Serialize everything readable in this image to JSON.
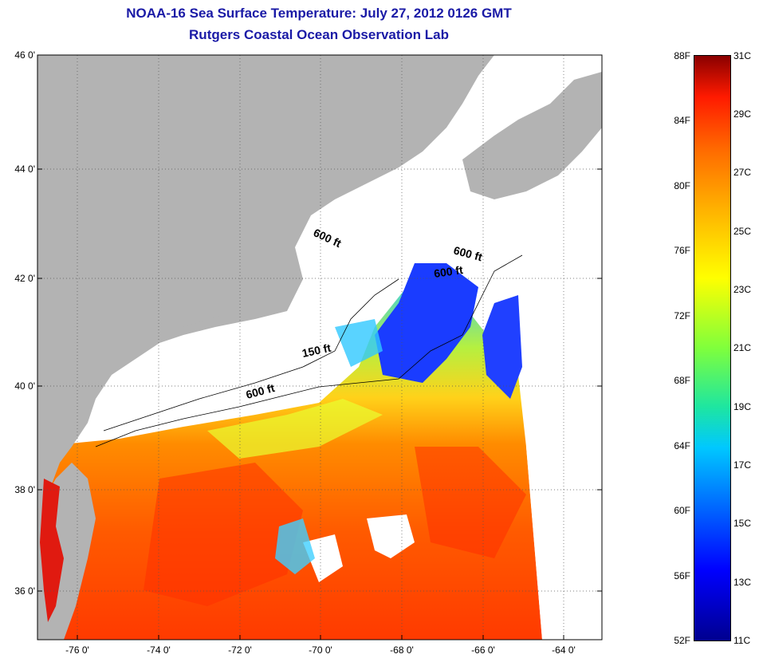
{
  "title_line1": "NOAA-16 Sea Surface Temperature:  July 27, 2012 0126 GMT",
  "title_line2": "Rutgers Coastal Ocean Observation Lab",
  "lat_labels": [
    "46 0'",
    "44 0'",
    "42 0'",
    "40 0'",
    "38 0'",
    "36 0'"
  ],
  "lon_labels": [
    "-76 0'",
    "-74 0'",
    "-72 0'",
    "-70 0'",
    "-68 0'",
    "-66 0'",
    "-64 0'"
  ],
  "contour_labels": [
    "600 ft",
    "600 ft",
    "600 ft",
    "150 ft",
    "600 ft"
  ],
  "colorbar": {
    "fahrenheit": [
      "88F",
      "84F",
      "80F",
      "76F",
      "72F",
      "68F",
      "64F",
      "60F",
      "56F",
      "52F"
    ],
    "celsius": [
      "31C",
      "29C",
      "27C",
      "25C",
      "23C",
      "21C",
      "19C",
      "17C",
      "15C",
      "13C",
      "11C"
    ]
  },
  "colors": {
    "land": "#b3b3b3",
    "cloud": "#ffffff",
    "title": "#1a1aa6"
  }
}
